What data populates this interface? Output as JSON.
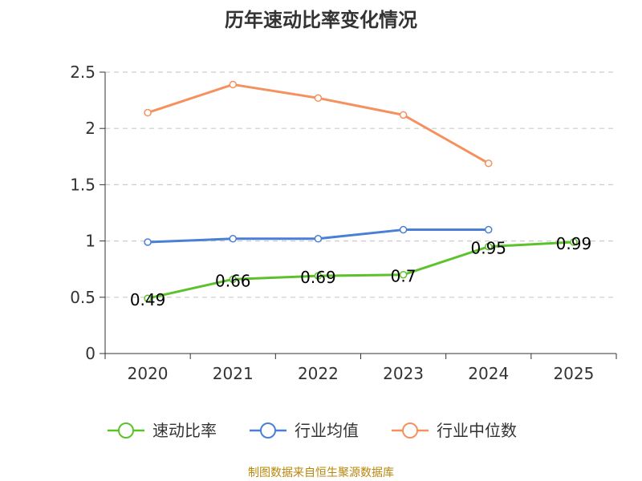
{
  "chart_data": {
    "type": "line",
    "title": "历年速动比率变化情况",
    "categories": [
      "2020",
      "2021",
      "2022",
      "2023",
      "2024",
      "2025"
    ],
    "y_ticks": [
      "0",
      "0.5",
      "1",
      "1.5",
      "2",
      "2.5"
    ],
    "ylim": [
      0,
      2.5
    ],
    "grid": "horizontal-dashed",
    "legend_position": "bottom",
    "series": [
      {
        "name": "速动比率",
        "color": "#5bc22b",
        "values": [
          0.49,
          0.66,
          0.69,
          0.7,
          0.95,
          0.99
        ],
        "labels": [
          "0.49",
          "0.66",
          "0.69",
          "0.7",
          "0.95",
          "0.99"
        ],
        "show_labels": true
      },
      {
        "name": "行业均值",
        "color": "#4a7fd6",
        "values": [
          0.99,
          1.02,
          1.02,
          1.1,
          1.1,
          null
        ],
        "show_labels": false
      },
      {
        "name": "行业中位数",
        "color": "#f5915e",
        "values": [
          2.14,
          2.39,
          2.27,
          2.12,
          1.69,
          null
        ],
        "show_labels": false
      }
    ]
  },
  "source_text": "制图数据来自恒生聚源数据库"
}
